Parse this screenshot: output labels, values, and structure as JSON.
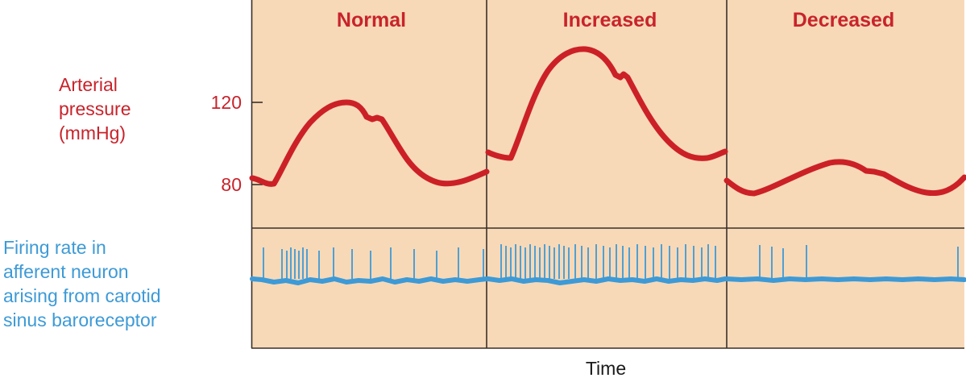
{
  "conditions": [
    {
      "label": "Normal"
    },
    {
      "label": "Increased"
    },
    {
      "label": "Decreased"
    }
  ],
  "pressure": {
    "label_lines": [
      "Arterial",
      "pressure",
      "(mmHg)"
    ],
    "ticks": [
      "120",
      "80"
    ],
    "tick_values": [
      120,
      80
    ]
  },
  "firing": {
    "label_lines": [
      "Firing rate in",
      "afferent neuron",
      "arising from carotid",
      "sinus baroreceptor"
    ]
  },
  "x_axis": {
    "label": "Time"
  },
  "colors": {
    "panel_fill": "#f7d9b8",
    "panel_border": "#3a3028",
    "pressure_trace": "#cc2027",
    "firing_trace": "#3d9ad6",
    "condition_text": "#c8232b",
    "pressure_label": "#c8232b",
    "firing_label": "#3d9ad6",
    "axis_text": "#1a1a1a"
  }
}
